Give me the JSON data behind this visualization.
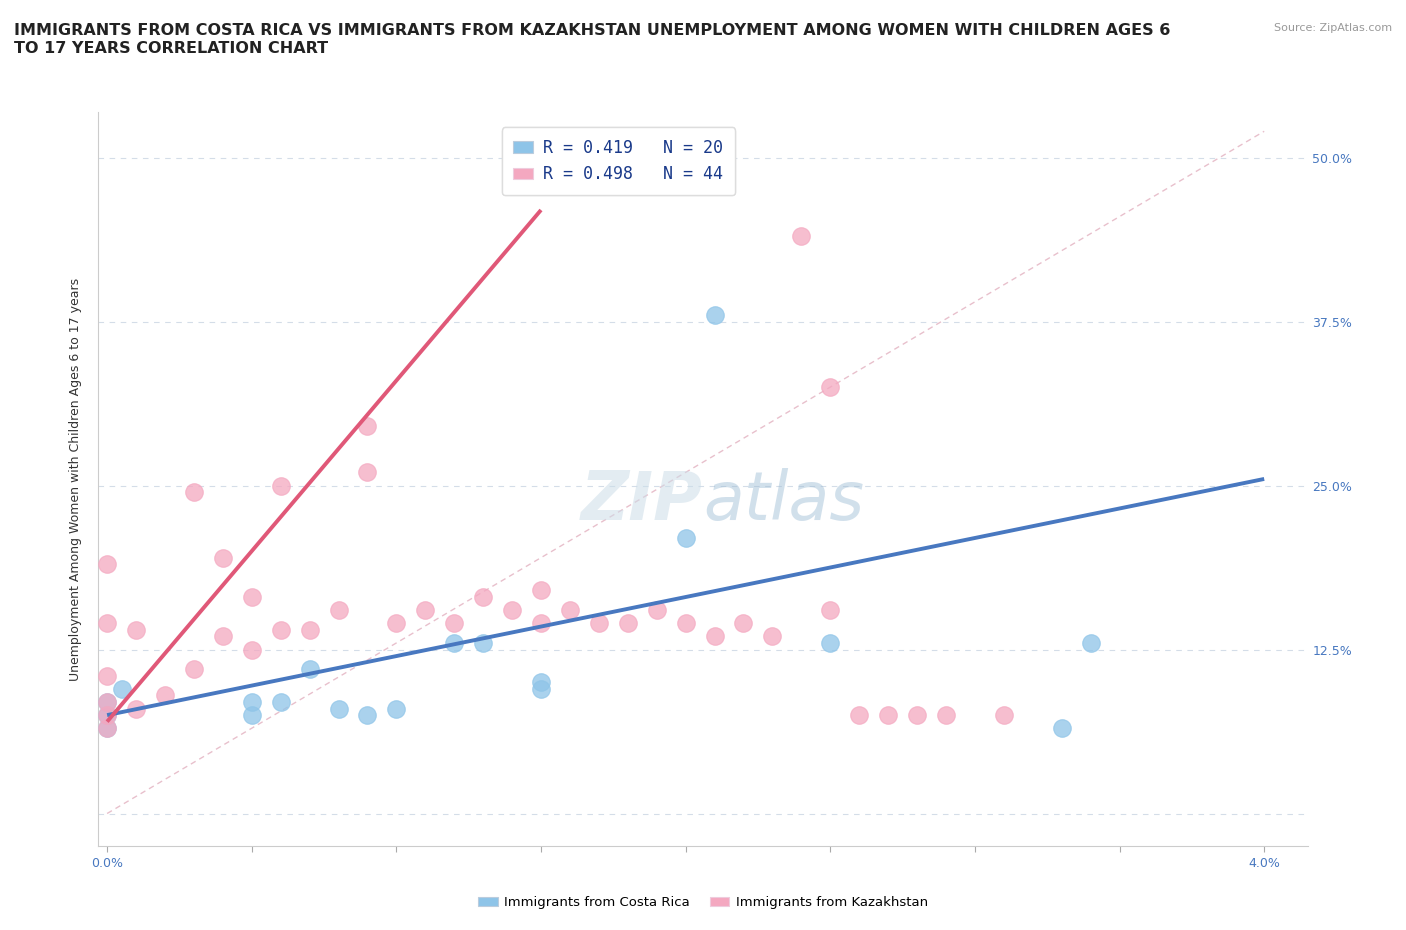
{
  "title": "IMMIGRANTS FROM COSTA RICA VS IMMIGRANTS FROM KAZAKHSTAN UNEMPLOYMENT AMONG WOMEN WITH CHILDREN AGES 6\nTO 17 YEARS CORRELATION CHART",
  "source": "Source: ZipAtlas.com",
  "ylabel": "Unemployment Among Women with Children Ages 6 to 17 years",
  "xlim": [
    0.0,
    0.04
  ],
  "ylim": [
    0.0,
    0.52
  ],
  "xtick_positions": [
    0.0,
    0.005,
    0.01,
    0.015,
    0.02,
    0.025,
    0.03,
    0.035,
    0.04
  ],
  "xticklabels": [
    "0.0%",
    "",
    "",
    "",
    "",
    "",
    "",
    "",
    "4.0%"
  ],
  "ytick_positions": [
    0.0,
    0.125,
    0.25,
    0.375,
    0.5
  ],
  "yticklabels_right": [
    "",
    "12.5%",
    "25.0%",
    "37.5%",
    "50.0%"
  ],
  "legend_entries": [
    {
      "label": "R = 0.419   N = 20",
      "color": "#a8c8e8"
    },
    {
      "label": "R = 0.498   N = 44",
      "color": "#f8b8cc"
    }
  ],
  "legend_bottom": [
    {
      "label": "Immigrants from Costa Rica",
      "color": "#a8c8e8"
    },
    {
      "label": "Immigrants from Kazakhstan",
      "color": "#f8b8cc"
    }
  ],
  "watermark": "ZIPatlas",
  "blue_scatter_x": [
    0.0,
    0.0,
    0.0,
    0.0005,
    0.005,
    0.005,
    0.006,
    0.007,
    0.008,
    0.009,
    0.01,
    0.012,
    0.013,
    0.015,
    0.015,
    0.02,
    0.021,
    0.025,
    0.033,
    0.034
  ],
  "blue_scatter_y": [
    0.065,
    0.075,
    0.085,
    0.095,
    0.075,
    0.085,
    0.085,
    0.11,
    0.08,
    0.075,
    0.08,
    0.13,
    0.13,
    0.1,
    0.095,
    0.21,
    0.38,
    0.13,
    0.065,
    0.13
  ],
  "pink_scatter_x": [
    0.0,
    0.0,
    0.0,
    0.0,
    0.0,
    0.0,
    0.001,
    0.001,
    0.002,
    0.003,
    0.003,
    0.004,
    0.004,
    0.005,
    0.005,
    0.006,
    0.006,
    0.007,
    0.008,
    0.009,
    0.009,
    0.01,
    0.011,
    0.012,
    0.013,
    0.014,
    0.015,
    0.015,
    0.016,
    0.017,
    0.018,
    0.019,
    0.02,
    0.021,
    0.022,
    0.023,
    0.024,
    0.025,
    0.025,
    0.026,
    0.027,
    0.028,
    0.029,
    0.031
  ],
  "pink_scatter_y": [
    0.065,
    0.075,
    0.085,
    0.105,
    0.145,
    0.19,
    0.08,
    0.14,
    0.09,
    0.11,
    0.245,
    0.135,
    0.195,
    0.125,
    0.165,
    0.14,
    0.25,
    0.14,
    0.155,
    0.26,
    0.295,
    0.145,
    0.155,
    0.145,
    0.165,
    0.155,
    0.145,
    0.17,
    0.155,
    0.145,
    0.145,
    0.155,
    0.145,
    0.135,
    0.145,
    0.135,
    0.44,
    0.325,
    0.155,
    0.075,
    0.075,
    0.075,
    0.075,
    0.075
  ],
  "blue_line_x": [
    0.0,
    0.04
  ],
  "blue_line_y": [
    0.075,
    0.255
  ],
  "pink_line_x": [
    0.0,
    0.015
  ],
  "pink_line_y": [
    0.07,
    0.46
  ],
  "diag_line_x": [
    0.0,
    0.04
  ],
  "diag_line_y": [
    0.0,
    0.52
  ],
  "background_color": "#ffffff",
  "grid_color": "#d4dde8",
  "blue_color": "#8ec4e8",
  "pink_color": "#f4a8c0",
  "blue_line_color": "#4878c0",
  "pink_line_color": "#e05878",
  "diag_line_color": "#e8c0cc",
  "title_fontsize": 11.5,
  "axis_label_fontsize": 9,
  "tick_fontsize": 9,
  "tick_color": "#4878c0"
}
